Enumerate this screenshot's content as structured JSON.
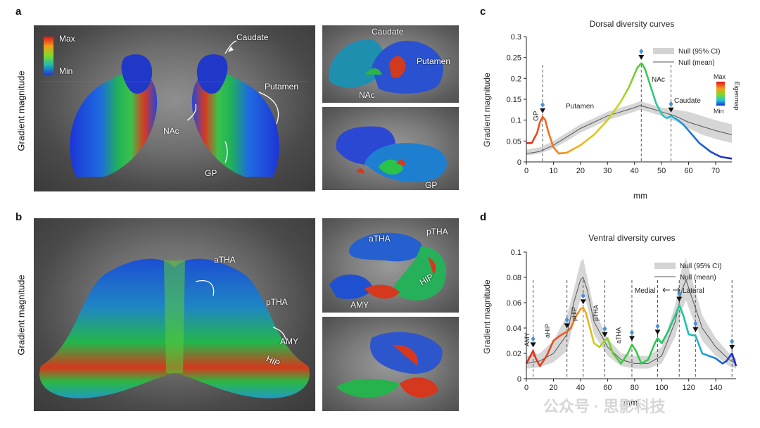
{
  "panels": {
    "a": {
      "letter": "a",
      "ylabel": "Gradient magnitude",
      "colorbar": {
        "max": "Max",
        "min": "Min"
      },
      "main_labels": {
        "caudate": "Caudate",
        "putamen": "Putamen",
        "nac": "NAc",
        "gp": "GP"
      },
      "top_labels": {
        "caudate": "Caudate",
        "putamen": "Putamen",
        "nac": "NAc"
      },
      "bottom_labels": {
        "gp": "GP"
      }
    },
    "b": {
      "letter": "b",
      "ylabel": "Gradient magnitude",
      "main_labels": {
        "atha": "aTHA",
        "ptha": "pTHA",
        "amy": "AMY",
        "hip": "HIP"
      },
      "top_labels": {
        "atha": "aTHA",
        "ptha": "pTHA",
        "amy": "AMY",
        "hip": "HIP"
      }
    }
  },
  "chart_data": [
    {
      "panel": "c",
      "type": "line",
      "title": "Dorsal diversity curves",
      "xlabel": "mm",
      "ylabel": "Gradient magnitude",
      "xlim": [
        0,
        76
      ],
      "ylim": [
        0,
        0.3
      ],
      "xticks": [
        0,
        10,
        20,
        30,
        40,
        50,
        60,
        70
      ],
      "yticks": [
        0,
        0.05,
        0.1,
        0.15,
        0.2,
        0.25,
        0.3
      ],
      "ytick_labels": [
        "0",
        "0.05",
        "0.1",
        "0.15",
        "0.2",
        "0.25",
        "0.3"
      ],
      "legend": {
        "placement": "top-right",
        "entries": [
          "Null (95% CI)",
          "Null (mean)"
        ]
      },
      "colorbar": {
        "max": "Max",
        "min": "Min",
        "label": "Eigenmap"
      },
      "annotations": [
        "GP",
        "Putamen",
        "NAc",
        "Caudate"
      ],
      "peak_x": [
        6,
        42.5,
        53.5
      ],
      "series": [
        {
          "name": "Eigenmap",
          "x": [
            0,
            2,
            4,
            5,
            6,
            7,
            8,
            10,
            12,
            15,
            20,
            25,
            30,
            35,
            38,
            40,
            41,
            42,
            42.5,
            43,
            44,
            46,
            48,
            50,
            51,
            52,
            53,
            53.5,
            54,
            56,
            58,
            60,
            62,
            64,
            66,
            68,
            70,
            72,
            74,
            76
          ],
          "y": [
            0.045,
            0.045,
            0.07,
            0.095,
            0.108,
            0.1,
            0.075,
            0.035,
            0.02,
            0.022,
            0.04,
            0.065,
            0.1,
            0.145,
            0.18,
            0.21,
            0.225,
            0.233,
            0.236,
            0.233,
            0.22,
            0.18,
            0.14,
            0.115,
            0.108,
            0.105,
            0.108,
            0.11,
            0.108,
            0.1,
            0.09,
            0.075,
            0.06,
            0.045,
            0.035,
            0.025,
            0.018,
            0.012,
            0.01,
            0.008
          ]
        },
        {
          "name": "Null (mean)",
          "x": [
            0,
            5,
            10,
            15,
            20,
            25,
            30,
            35,
            40,
            42,
            45,
            50,
            55,
            60,
            65,
            70,
            76
          ],
          "y": [
            0.02,
            0.025,
            0.04,
            0.06,
            0.08,
            0.095,
            0.11,
            0.12,
            0.13,
            0.135,
            0.13,
            0.12,
            0.11,
            0.095,
            0.085,
            0.075,
            0.065
          ]
        },
        {
          "name": "Null (95% CI) upper",
          "x": [
            0,
            5,
            10,
            15,
            20,
            25,
            30,
            35,
            40,
            42,
            45,
            50,
            55,
            60,
            65,
            70,
            76
          ],
          "y": [
            0.03,
            0.035,
            0.05,
            0.07,
            0.09,
            0.105,
            0.12,
            0.13,
            0.14,
            0.145,
            0.14,
            0.13,
            0.125,
            0.12,
            0.11,
            0.1,
            0.09
          ]
        },
        {
          "name": "Null (95% CI) lower",
          "x": [
            0,
            5,
            10,
            15,
            20,
            25,
            30,
            35,
            40,
            42,
            45,
            50,
            55,
            60,
            65,
            70,
            76
          ],
          "y": [
            0.015,
            0.02,
            0.032,
            0.05,
            0.07,
            0.085,
            0.1,
            0.11,
            0.12,
            0.125,
            0.12,
            0.11,
            0.098,
            0.08,
            0.065,
            0.055,
            0.045
          ]
        }
      ]
    },
    {
      "panel": "d",
      "type": "line",
      "title": "Ventral diversity curves",
      "xlabel": "mm",
      "ylabel": "Gradient magnitude",
      "xlim": [
        0,
        155
      ],
      "ylim": [
        0,
        0.1
      ],
      "xticks": [
        0,
        20,
        40,
        60,
        80,
        100,
        120,
        140
      ],
      "yticks": [
        0,
        0.02,
        0.04,
        0.06,
        0.08,
        0.1
      ],
      "ytick_labels": [
        "0",
        "0.02",
        "0.04",
        "0.06",
        "0.08",
        "0.1"
      ],
      "legend": {
        "placement": "top-right",
        "entries": [
          "Null (95% CI)",
          "Null (mean)"
        ]
      },
      "annotations": [
        "AMY",
        "aHIP",
        "pHIP",
        "pTHA",
        "aTHA",
        "Medial",
        "Lateral"
      ],
      "peak_x": [
        5,
        30,
        42,
        58,
        78,
        97,
        113,
        125,
        152
      ],
      "series": [
        {
          "name": "Eigenmap",
          "x": [
            0,
            3,
            5,
            7,
            10,
            15,
            20,
            25,
            28,
            30,
            33,
            36,
            40,
            42,
            44,
            47,
            50,
            54,
            58,
            60,
            64,
            70,
            75,
            78,
            81,
            85,
            90,
            95,
            97,
            100,
            105,
            110,
            113,
            116,
            120,
            125,
            130,
            135,
            140,
            145,
            148,
            152,
            155
          ],
          "y": [
            0.012,
            0.018,
            0.022,
            0.016,
            0.01,
            0.018,
            0.03,
            0.034,
            0.036,
            0.037,
            0.04,
            0.048,
            0.055,
            0.056,
            0.052,
            0.04,
            0.028,
            0.025,
            0.03,
            0.032,
            0.02,
            0.012,
            0.02,
            0.027,
            0.022,
            0.012,
            0.015,
            0.028,
            0.032,
            0.028,
            0.038,
            0.05,
            0.058,
            0.05,
            0.035,
            0.034,
            0.02,
            0.018,
            0.016,
            0.012,
            0.014,
            0.02,
            0.01
          ]
        },
        {
          "name": "Null (mean)",
          "x": [
            0,
            10,
            20,
            30,
            35,
            40,
            42,
            45,
            50,
            60,
            70,
            80,
            90,
            100,
            110,
            115,
            118,
            122,
            130,
            140,
            150,
            155
          ],
          "y": [
            0.012,
            0.014,
            0.02,
            0.035,
            0.06,
            0.078,
            0.08,
            0.07,
            0.045,
            0.025,
            0.015,
            0.012,
            0.012,
            0.018,
            0.045,
            0.07,
            0.078,
            0.065,
            0.04,
            0.025,
            0.015,
            0.012
          ]
        },
        {
          "name": "Null (95% CI) upper",
          "x": [
            0,
            10,
            20,
            30,
            35,
            40,
            42,
            45,
            50,
            60,
            70,
            80,
            90,
            100,
            110,
            115,
            118,
            122,
            130,
            140,
            150,
            155
          ],
          "y": [
            0.018,
            0.02,
            0.03,
            0.05,
            0.07,
            0.092,
            0.095,
            0.08,
            0.055,
            0.032,
            0.02,
            0.018,
            0.018,
            0.025,
            0.058,
            0.088,
            0.095,
            0.08,
            0.05,
            0.032,
            0.02,
            0.016
          ]
        },
        {
          "name": "Null (95% CI) lower",
          "x": [
            0,
            10,
            20,
            30,
            35,
            40,
            42,
            45,
            50,
            60,
            70,
            80,
            90,
            100,
            110,
            115,
            118,
            122,
            130,
            140,
            150,
            155
          ],
          "y": [
            0.008,
            0.009,
            0.013,
            0.022,
            0.045,
            0.063,
            0.066,
            0.058,
            0.035,
            0.018,
            0.01,
            0.008,
            0.008,
            0.012,
            0.033,
            0.054,
            0.062,
            0.05,
            0.03,
            0.018,
            0.01,
            0.008
          ]
        }
      ]
    }
  ],
  "watermark": "公众号 · 思影科技"
}
